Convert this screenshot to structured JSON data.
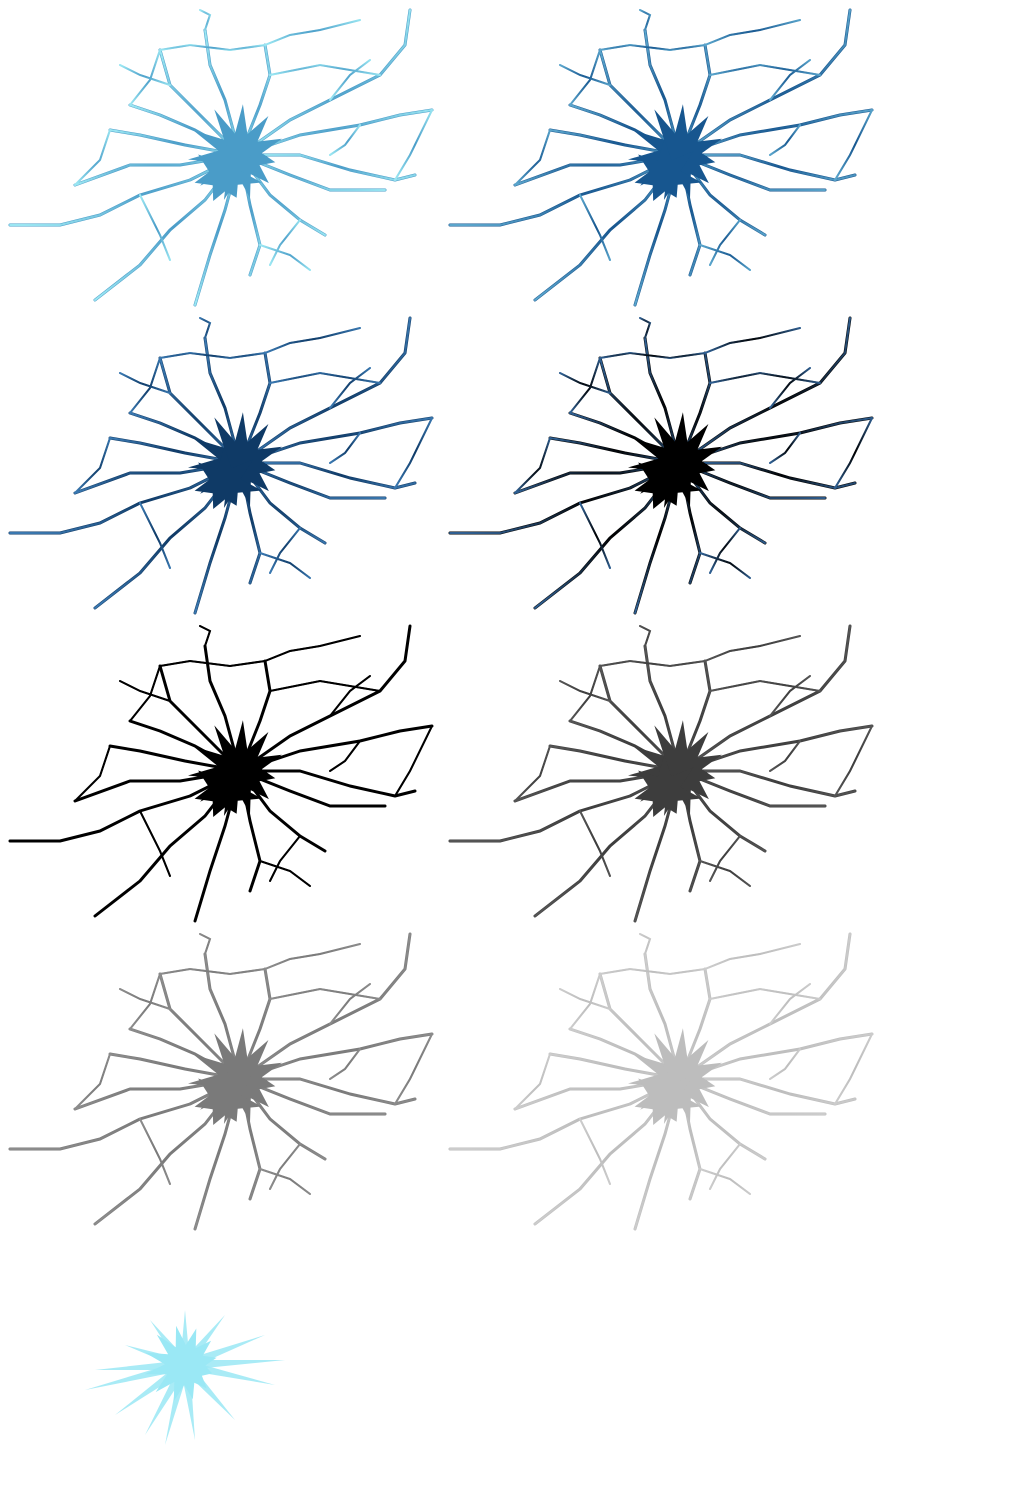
{
  "sheet": {
    "background": "#ffffff",
    "sprites": [
      {
        "name": "crack-icon-light-blue",
        "core": "#4a9cc8",
        "outer": "#9ae6f2"
      },
      {
        "name": "crack-icon-medium-blue",
        "core": "#17568f",
        "outer": "#5aa5cc"
      },
      {
        "name": "crack-icon-navy",
        "core": "#0f3a66",
        "outer": "#3a78b0"
      },
      {
        "name": "crack-icon-black-navy",
        "core": "#000000",
        "outer": "#2f5f91"
      },
      {
        "name": "crack-icon-black",
        "core": "#000000",
        "outer": "#000000"
      },
      {
        "name": "crack-icon-dark-gray",
        "core": "#3d3d3d",
        "outer": "#555555"
      },
      {
        "name": "crack-icon-gray",
        "core": "#7a7a7a",
        "outer": "#8c8c8c"
      },
      {
        "name": "crack-icon-light-gray",
        "core": "#bdbdbd",
        "outer": "#cccccc"
      }
    ],
    "burst": {
      "name": "burst-icon-cyan",
      "color": "#9ae8f5"
    }
  }
}
